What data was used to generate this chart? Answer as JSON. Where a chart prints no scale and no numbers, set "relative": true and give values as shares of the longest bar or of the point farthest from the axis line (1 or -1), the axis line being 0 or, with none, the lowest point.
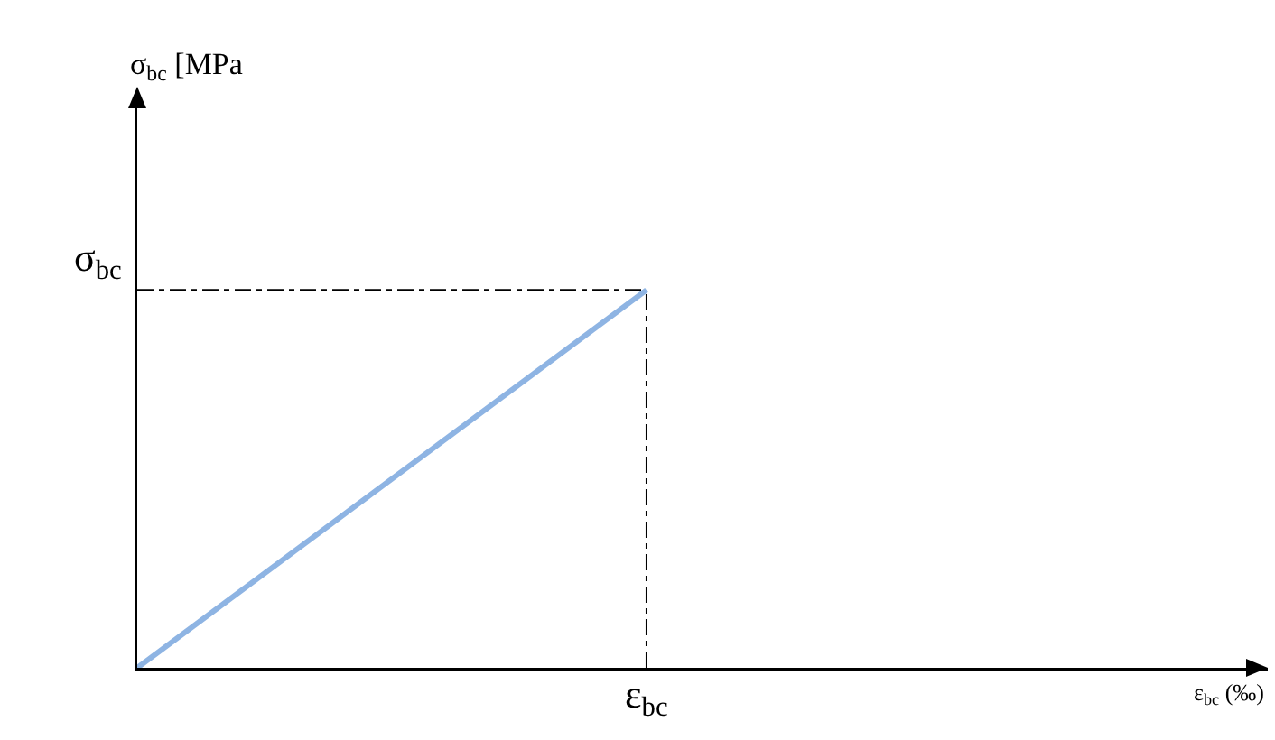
{
  "chart_data": {
    "type": "line",
    "relative": true,
    "xlabel": "ε$_{bc}$ (‰)",
    "categories": [
      null,
      null
    ],
    "series": [
      {
        "color": "#8eb4e3",
        "values": [
          0,
          1
        ]
      }
    ],
    "ref_lines": [
      {
        "axis": "y",
        "value": 1,
        "label": "σ$_{bc}$",
        "line_style": "dashed",
        "color": "#000000"
      }
    ],
    "annotations": [
      "ε$_{bc}$",
      "σ$_{bc}$ [MPa"
    ],
    "marker": "none",
    "grid": false
  }
}
